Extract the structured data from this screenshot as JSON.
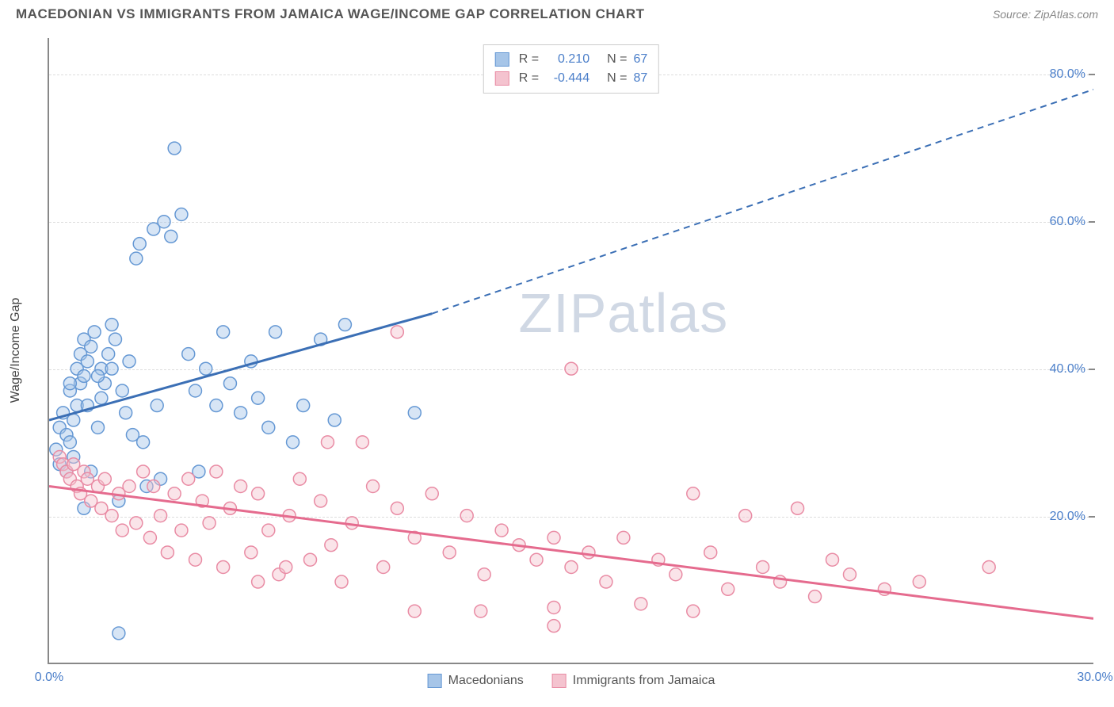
{
  "title": "MACEDONIAN VS IMMIGRANTS FROM JAMAICA WAGE/INCOME GAP CORRELATION CHART",
  "source": "Source: ZipAtlas.com",
  "watermark": "ZIPatlas",
  "chart": {
    "type": "scatter",
    "ylabel": "Wage/Income Gap",
    "background_color": "#ffffff",
    "grid_color": "#dddddd",
    "axis_color": "#888888",
    "xlim": [
      0,
      30
    ],
    "ylim": [
      0,
      85
    ],
    "x_ticks": [
      {
        "v": 0,
        "l": "0.0%"
      },
      {
        "v": 30,
        "l": "30.0%"
      }
    ],
    "y_ticks": [
      {
        "v": 20,
        "l": "20.0%"
      },
      {
        "v": 40,
        "l": "40.0%"
      },
      {
        "v": 60,
        "l": "60.0%"
      },
      {
        "v": 80,
        "l": "80.0%"
      }
    ],
    "y_grid": [
      20,
      40,
      60,
      80
    ],
    "label_color": "#4a7ec9",
    "label_fontsize": 16,
    "title_fontsize": 17,
    "marker_radius": 8,
    "marker_opacity": 0.45,
    "line_width": 3,
    "series": [
      {
        "name": "Macedonians",
        "color_fill": "#a6c5e8",
        "color_stroke": "#6598d4",
        "color_line": "#3b6fb5",
        "R": "0.210",
        "N": "67",
        "trend": {
          "x1": 0,
          "y1": 33,
          "x2": 11,
          "y2": 47.5,
          "x2_ext": 30,
          "y2_ext": 78
        },
        "points": [
          [
            0.2,
            29
          ],
          [
            0.3,
            27
          ],
          [
            0.3,
            32
          ],
          [
            0.4,
            34
          ],
          [
            0.5,
            26
          ],
          [
            0.5,
            31
          ],
          [
            0.6,
            30
          ],
          [
            0.6,
            37
          ],
          [
            0.7,
            28
          ],
          [
            0.7,
            33
          ],
          [
            0.8,
            35
          ],
          [
            0.8,
            40
          ],
          [
            0.9,
            38
          ],
          [
            0.9,
            42
          ],
          [
            1.0,
            39
          ],
          [
            1.0,
            44
          ],
          [
            1.1,
            41
          ],
          [
            1.2,
            43
          ],
          [
            1.2,
            26
          ],
          [
            1.3,
            45
          ],
          [
            1.4,
            32
          ],
          [
            1.5,
            36
          ],
          [
            1.5,
            40
          ],
          [
            1.6,
            38
          ],
          [
            1.7,
            42
          ],
          [
            1.8,
            40
          ],
          [
            1.9,
            44
          ],
          [
            2.0,
            22
          ],
          [
            2.1,
            37
          ],
          [
            2.2,
            34
          ],
          [
            2.3,
            41
          ],
          [
            2.5,
            55
          ],
          [
            2.6,
            57
          ],
          [
            2.7,
            30
          ],
          [
            2.8,
            24
          ],
          [
            3.0,
            59
          ],
          [
            3.1,
            35
          ],
          [
            3.3,
            60
          ],
          [
            3.5,
            58
          ],
          [
            3.6,
            70
          ],
          [
            3.8,
            61
          ],
          [
            2.0,
            4
          ],
          [
            1.0,
            21
          ],
          [
            4.0,
            42
          ],
          [
            4.2,
            37
          ],
          [
            4.5,
            40
          ],
          [
            4.8,
            35
          ],
          [
            5.0,
            45
          ],
          [
            5.2,
            38
          ],
          [
            5.5,
            34
          ],
          [
            5.8,
            41
          ],
          [
            6.0,
            36
          ],
          [
            6.3,
            32
          ],
          [
            6.5,
            45
          ],
          [
            7.0,
            30
          ],
          [
            7.3,
            35
          ],
          [
            7.8,
            44
          ],
          [
            8.2,
            33
          ],
          [
            10.5,
            34
          ],
          [
            8.5,
            46
          ],
          [
            3.2,
            25
          ],
          [
            4.3,
            26
          ],
          [
            1.4,
            39
          ],
          [
            0.6,
            38
          ],
          [
            1.1,
            35
          ],
          [
            2.4,
            31
          ],
          [
            1.8,
            46
          ]
        ]
      },
      {
        "name": "Immigrants from Jamaica",
        "color_fill": "#f4c3cf",
        "color_stroke": "#e98ba4",
        "color_line": "#e56b8e",
        "R": "-0.444",
        "N": "87",
        "trend": {
          "x1": 0,
          "y1": 24,
          "x2": 30,
          "y2": 6,
          "x2_ext": 30,
          "y2_ext": 6
        },
        "points": [
          [
            0.3,
            28
          ],
          [
            0.4,
            27
          ],
          [
            0.5,
            26
          ],
          [
            0.6,
            25
          ],
          [
            0.7,
            27
          ],
          [
            0.8,
            24
          ],
          [
            0.9,
            23
          ],
          [
            1.0,
            26
          ],
          [
            1.1,
            25
          ],
          [
            1.2,
            22
          ],
          [
            1.4,
            24
          ],
          [
            1.5,
            21
          ],
          [
            1.6,
            25
          ],
          [
            1.8,
            20
          ],
          [
            2.0,
            23
          ],
          [
            2.1,
            18
          ],
          [
            2.3,
            24
          ],
          [
            2.5,
            19
          ],
          [
            2.7,
            26
          ],
          [
            2.9,
            17
          ],
          [
            3.0,
            24
          ],
          [
            3.2,
            20
          ],
          [
            3.4,
            15
          ],
          [
            3.6,
            23
          ],
          [
            3.8,
            18
          ],
          [
            4.0,
            25
          ],
          [
            4.2,
            14
          ],
          [
            4.4,
            22
          ],
          [
            4.6,
            19
          ],
          [
            4.8,
            26
          ],
          [
            5.0,
            13
          ],
          [
            5.2,
            21
          ],
          [
            5.5,
            24
          ],
          [
            5.8,
            15
          ],
          [
            6.0,
            23
          ],
          [
            6.3,
            18
          ],
          [
            6.6,
            12
          ],
          [
            6.9,
            20
          ],
          [
            7.2,
            25
          ],
          [
            7.5,
            14
          ],
          [
            7.8,
            22
          ],
          [
            8.1,
            16
          ],
          [
            8.4,
            11
          ],
          [
            8.7,
            19
          ],
          [
            9.0,
            30
          ],
          [
            9.3,
            24
          ],
          [
            9.6,
            13
          ],
          [
            10.0,
            21
          ],
          [
            10.5,
            17
          ],
          [
            6.0,
            11
          ],
          [
            10.5,
            7
          ],
          [
            11.0,
            23
          ],
          [
            11.5,
            15
          ],
          [
            12.0,
            20
          ],
          [
            12.4,
            7
          ],
          [
            12.5,
            12
          ],
          [
            13.0,
            18
          ],
          [
            13.5,
            16
          ],
          [
            14.0,
            14
          ],
          [
            14.5,
            17
          ],
          [
            14.5,
            5
          ],
          [
            14.5,
            7.5
          ],
          [
            15.0,
            40
          ],
          [
            15.0,
            13
          ],
          [
            15.5,
            15
          ],
          [
            16.0,
            11
          ],
          [
            16.5,
            17
          ],
          [
            17.0,
            8
          ],
          [
            17.5,
            14
          ],
          [
            18.0,
            12
          ],
          [
            18.5,
            23
          ],
          [
            18.5,
            7
          ],
          [
            19.0,
            15
          ],
          [
            19.5,
            10
          ],
          [
            20.0,
            20
          ],
          [
            20.5,
            13
          ],
          [
            21.0,
            11
          ],
          [
            21.5,
            21
          ],
          [
            22.0,
            9
          ],
          [
            22.5,
            14
          ],
          [
            10.0,
            45
          ],
          [
            23.0,
            12
          ],
          [
            24.0,
            10
          ],
          [
            25.0,
            11
          ],
          [
            27.0,
            13
          ],
          [
            6.8,
            13
          ],
          [
            8.0,
            30
          ]
        ]
      }
    ]
  }
}
